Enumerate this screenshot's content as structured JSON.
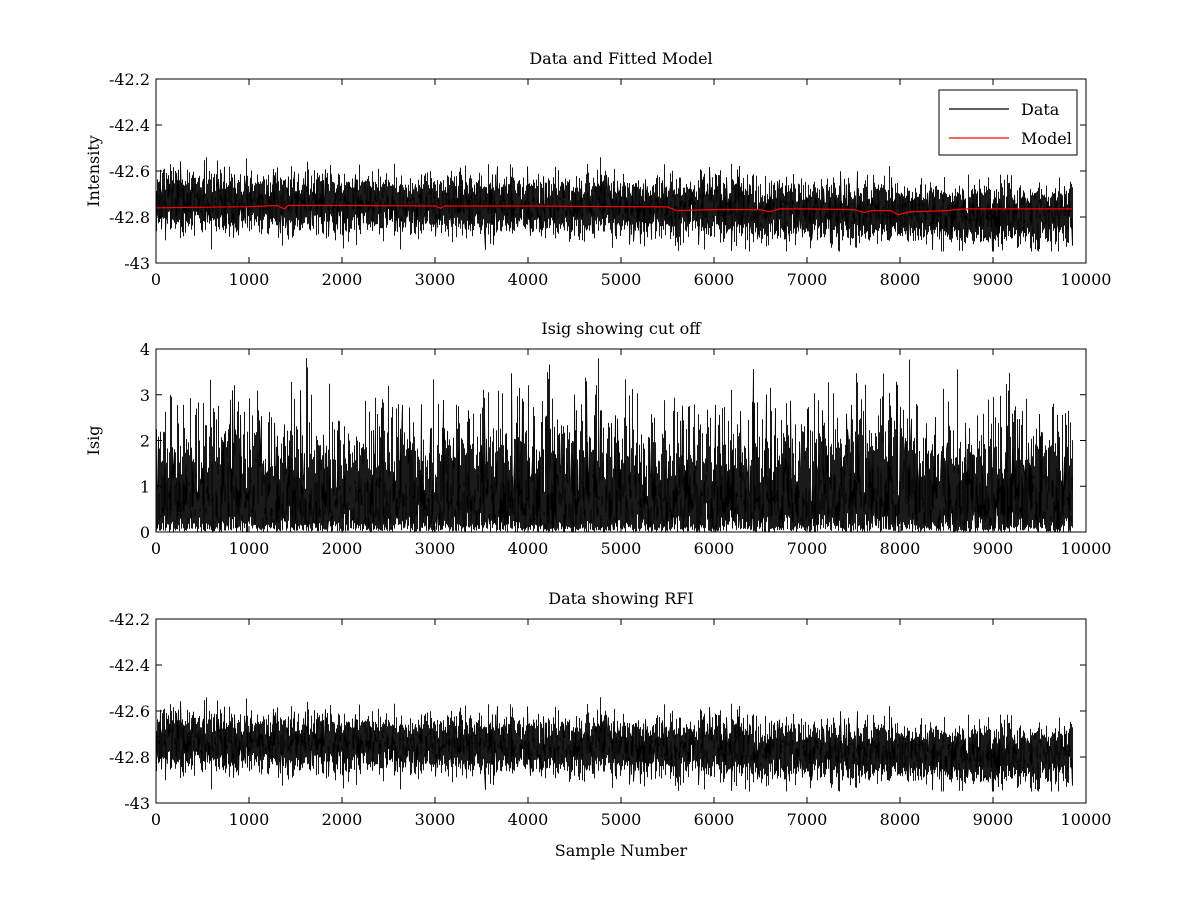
{
  "chart_data": [
    {
      "type": "line",
      "title": "Data and Fitted Model",
      "xlabel": "",
      "ylabel": "Intensity",
      "xlim": [
        0,
        10000
      ],
      "ylim": [
        -43,
        -42.2
      ],
      "xticks": [
        0,
        1000,
        2000,
        3000,
        4000,
        5000,
        6000,
        7000,
        8000,
        9000,
        10000
      ],
      "yticks": [
        -42.2,
        -42.4,
        -42.6,
        -42.8,
        -43
      ],
      "xtick_labels": [
        "0",
        "1000",
        "2000",
        "3000",
        "4000",
        "5000",
        "6000",
        "7000",
        "8000",
        "9000",
        "10000"
      ],
      "ytick_labels": [
        "-42.2",
        "-42.4",
        "-42.6",
        "-42.8",
        "-43"
      ],
      "grid": false,
      "legend": {
        "position": "top-right",
        "entries": [
          {
            "label": "Data",
            "color": "#000000"
          },
          {
            "label": "Model",
            "color": "#ff0000"
          }
        ]
      },
      "series": [
        {
          "name": "Data",
          "color": "#000000",
          "kind": "noise",
          "n_samples": 9850,
          "x_range": [
            0,
            9850
          ],
          "baseline": {
            "x": [
              0,
              2000,
              4000,
              5500,
              6500,
              8000,
              9000,
              9850
            ],
            "y": [
              -42.73,
              -42.74,
              -42.75,
              -42.76,
              -42.77,
              -42.78,
              -42.79,
              -42.79
            ]
          },
          "noise_range": [
            -42.95,
            -42.54
          ],
          "noise_amplitude": 0.06,
          "seed": 11
        },
        {
          "name": "Model",
          "color": "#ff0000",
          "x": [
            0,
            1000,
            1300,
            1380,
            1420,
            2000,
            3000,
            3060,
            3100,
            4000,
            5000,
            5500,
            5600,
            6000,
            6500,
            6600,
            6700,
            7000,
            7500,
            7620,
            7700,
            7900,
            7980,
            8100,
            8500,
            8700,
            9000,
            9850
          ],
          "y": [
            -42.76,
            -42.755,
            -42.75,
            -42.765,
            -42.75,
            -42.75,
            -42.752,
            -42.762,
            -42.752,
            -42.752,
            -42.755,
            -42.756,
            -42.772,
            -42.768,
            -42.768,
            -42.778,
            -42.765,
            -42.765,
            -42.768,
            -42.78,
            -42.772,
            -42.772,
            -42.79,
            -42.778,
            -42.772,
            -42.765,
            -42.765,
            -42.765
          ]
        }
      ]
    },
    {
      "type": "line",
      "title": "Isig showing cut off",
      "xlabel": "",
      "ylabel": "Isig",
      "xlim": [
        0,
        10000
      ],
      "ylim": [
        0,
        4
      ],
      "xticks": [
        0,
        1000,
        2000,
        3000,
        4000,
        5000,
        6000,
        7000,
        8000,
        9000,
        10000
      ],
      "yticks": [
        0,
        1,
        2,
        3,
        4
      ],
      "xtick_labels": [
        "0",
        "1000",
        "2000",
        "3000",
        "4000",
        "5000",
        "6000",
        "7000",
        "8000",
        "9000",
        "10000"
      ],
      "ytick_labels": [
        "0",
        "1",
        "2",
        "3",
        "4"
      ],
      "grid": false,
      "series": [
        {
          "name": "Isig",
          "color": "#000000",
          "kind": "halfnormal",
          "n_samples": 9850,
          "x_range": [
            0,
            9850
          ],
          "mean": 0.85,
          "max": 3.8,
          "seed": 23
        }
      ]
    },
    {
      "type": "line",
      "title": "Data showing RFI",
      "xlabel": "Sample Number",
      "ylabel": "",
      "xlim": [
        0,
        10000
      ],
      "ylim": [
        -43,
        -42.2
      ],
      "xticks": [
        0,
        1000,
        2000,
        3000,
        4000,
        5000,
        6000,
        7000,
        8000,
        9000,
        10000
      ],
      "yticks": [
        -42.2,
        -42.4,
        -42.6,
        -42.8,
        -43
      ],
      "xtick_labels": [
        "0",
        "1000",
        "2000",
        "3000",
        "4000",
        "5000",
        "6000",
        "7000",
        "8000",
        "9000",
        "10000"
      ],
      "ytick_labels": [
        "-42.2",
        "-42.4",
        "-42.6",
        "-42.8",
        "-43"
      ],
      "grid": false,
      "series": [
        {
          "name": "Data",
          "color": "#000000",
          "kind": "noise",
          "n_samples": 9850,
          "x_range": [
            0,
            9850
          ],
          "baseline": {
            "x": [
              0,
              2000,
              4000,
              5500,
              6500,
              8000,
              9000,
              9850
            ],
            "y": [
              -42.73,
              -42.74,
              -42.75,
              -42.76,
              -42.77,
              -42.78,
              -42.79,
              -42.79
            ]
          },
          "noise_range": [
            -42.95,
            -42.54
          ],
          "noise_amplitude": 0.06,
          "seed": 11
        }
      ]
    }
  ]
}
